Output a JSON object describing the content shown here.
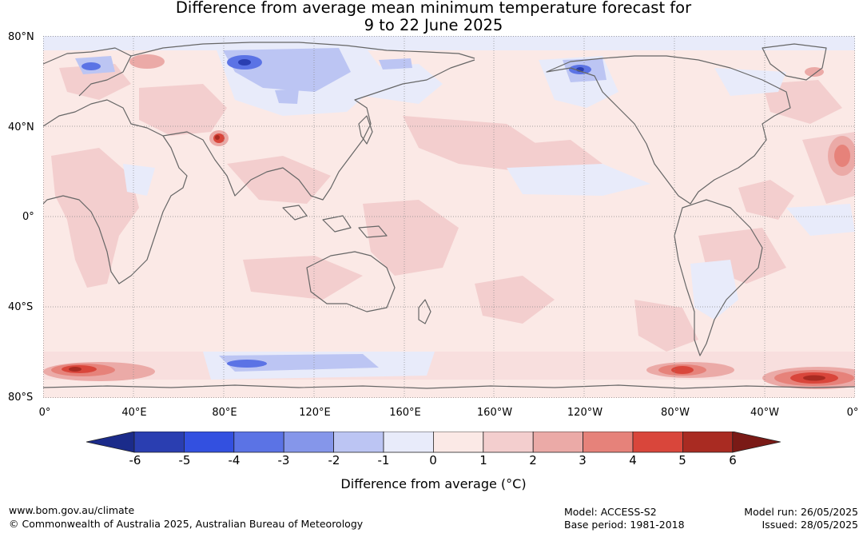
{
  "title": {
    "line1": "Difference from average mean minimum temperature forecast for",
    "line2": "9 to 22 June 2025"
  },
  "map": {
    "lat_labels": [
      "80°N",
      "40°N",
      "0°",
      "40°S",
      "80°S"
    ],
    "lon_labels": [
      "0°",
      "40°E",
      "80°E",
      "120°E",
      "160°E",
      "160°W",
      "120°W",
      "80°W",
      "40°W",
      "0°"
    ],
    "colors": {
      "ocean_background": "#fbe9e6",
      "coastline": "#666666",
      "gridline": "#888888"
    }
  },
  "legend": {
    "ticks": [
      "-6",
      "-5",
      "-4",
      "-3",
      "-2",
      "-1",
      "0",
      "1",
      "2",
      "3",
      "4",
      "5",
      "6"
    ],
    "colors": [
      "#1b2b8a",
      "#2a3eb1",
      "#3350e0",
      "#5b73e5",
      "#8596ea",
      "#bcc5f3",
      "#e8ebfa",
      "#fbe9e6",
      "#f3cece",
      "#ebaaa7",
      "#e6827a",
      "#d9463b",
      "#a92b22",
      "#7a1a16"
    ],
    "label": "Difference from average (°C)"
  },
  "footer": {
    "website": "www.bom.gov.au/climate",
    "copyright": "© Commonwealth of Australia 2025, Australian Bureau of Meteorology",
    "model": "Model: ACCESS-S2",
    "base_period": "Base period: 1981-2018",
    "model_run": "Model run: 26/05/2025",
    "issued": "Issued: 28/05/2025"
  }
}
